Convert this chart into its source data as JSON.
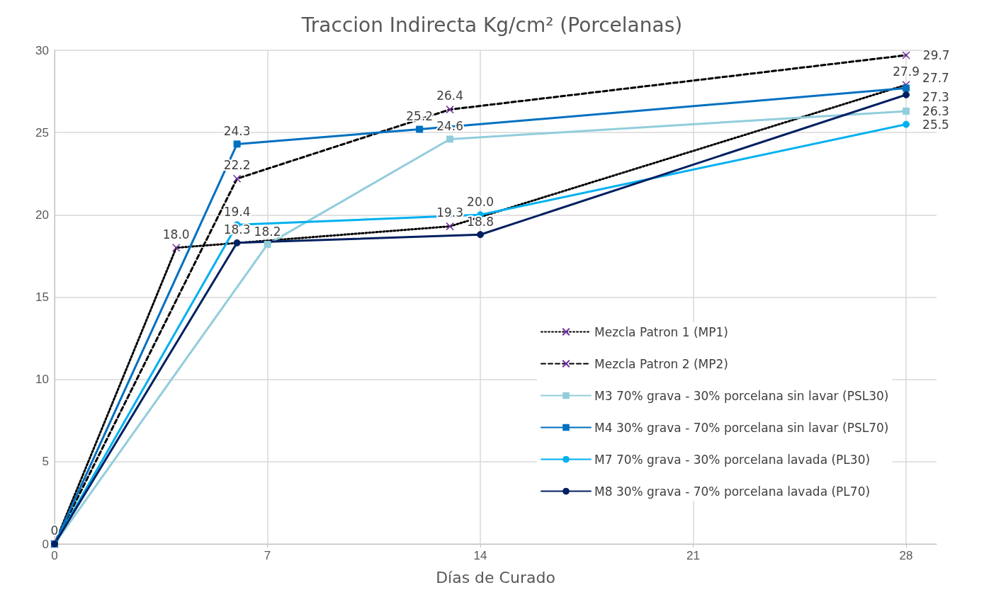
{
  "chart_data": {
    "type": "line",
    "title": "Traccion Indirecta Kg/cm² (Porcelanas)",
    "xlabel": "Días de Curado",
    "xlim": [
      0,
      29
    ],
    "xticks": [
      0,
      7,
      14,
      21,
      28
    ],
    "ylim": [
      0,
      30
    ],
    "yticks": [
      0,
      5,
      10,
      15,
      20,
      25,
      30
    ],
    "grid": true,
    "legend": "bottom right",
    "series": [
      {
        "name": "Mezcla Patron 1 (MP1)",
        "color": "#000000",
        "line_style": "dotted",
        "marker": "cross",
        "x": [
          0,
          4,
          13,
          28
        ],
        "values": [
          0,
          18.0,
          19.3,
          27.9
        ],
        "value_labels": [
          "0",
          "18.0",
          "19.3",
          "27.9"
        ]
      },
      {
        "name": "Mezcla Patron 2 (MP2)",
        "color": "#000000",
        "line_style": "dashed",
        "marker": "cross",
        "x": [
          0,
          6,
          13,
          28
        ],
        "values": [
          0,
          22.2,
          26.4,
          29.7
        ],
        "value_labels": [
          "0",
          "22.2",
          "26.4",
          "29.7"
        ]
      },
      {
        "name": "M3 70% grava - 30% porcelana sin lavar (PSL30)",
        "color": "#92cddc",
        "line_style": "solid",
        "marker": "square",
        "x": [
          0,
          7,
          13,
          28
        ],
        "values": [
          0,
          18.2,
          24.6,
          26.3
        ],
        "value_labels": [
          null,
          "18.2",
          "24.6",
          "26.3"
        ]
      },
      {
        "name": "M4 30% grava - 70% porcelana sin lavar (PSL70)",
        "color": "#0070c0",
        "line_style": "solid",
        "marker": "square",
        "x": [
          0,
          6,
          12,
          28
        ],
        "values": [
          0,
          24.3,
          25.2,
          27.7
        ],
        "value_labels": [
          null,
          "24.3",
          "25.2",
          "27.7"
        ]
      },
      {
        "name": "M7 70% grava - 30% porcelana lavada (PL30)",
        "color": "#00b0f0",
        "line_style": "solid",
        "marker": "circle",
        "x": [
          0,
          6,
          14,
          28
        ],
        "values": [
          0,
          19.4,
          20.0,
          25.5
        ],
        "value_labels": [
          null,
          "19.4",
          "20.0",
          "25.5"
        ]
      },
      {
        "name": "M8 30% grava - 70% porcelana lavada (PL70)",
        "color": "#002060",
        "line_style": "solid",
        "marker": "circle",
        "x": [
          0,
          6,
          14,
          28
        ],
        "values": [
          0,
          18.3,
          18.8,
          27.3
        ],
        "value_labels": [
          null,
          "18.3",
          "18.8",
          "27.3"
        ]
      }
    ]
  }
}
